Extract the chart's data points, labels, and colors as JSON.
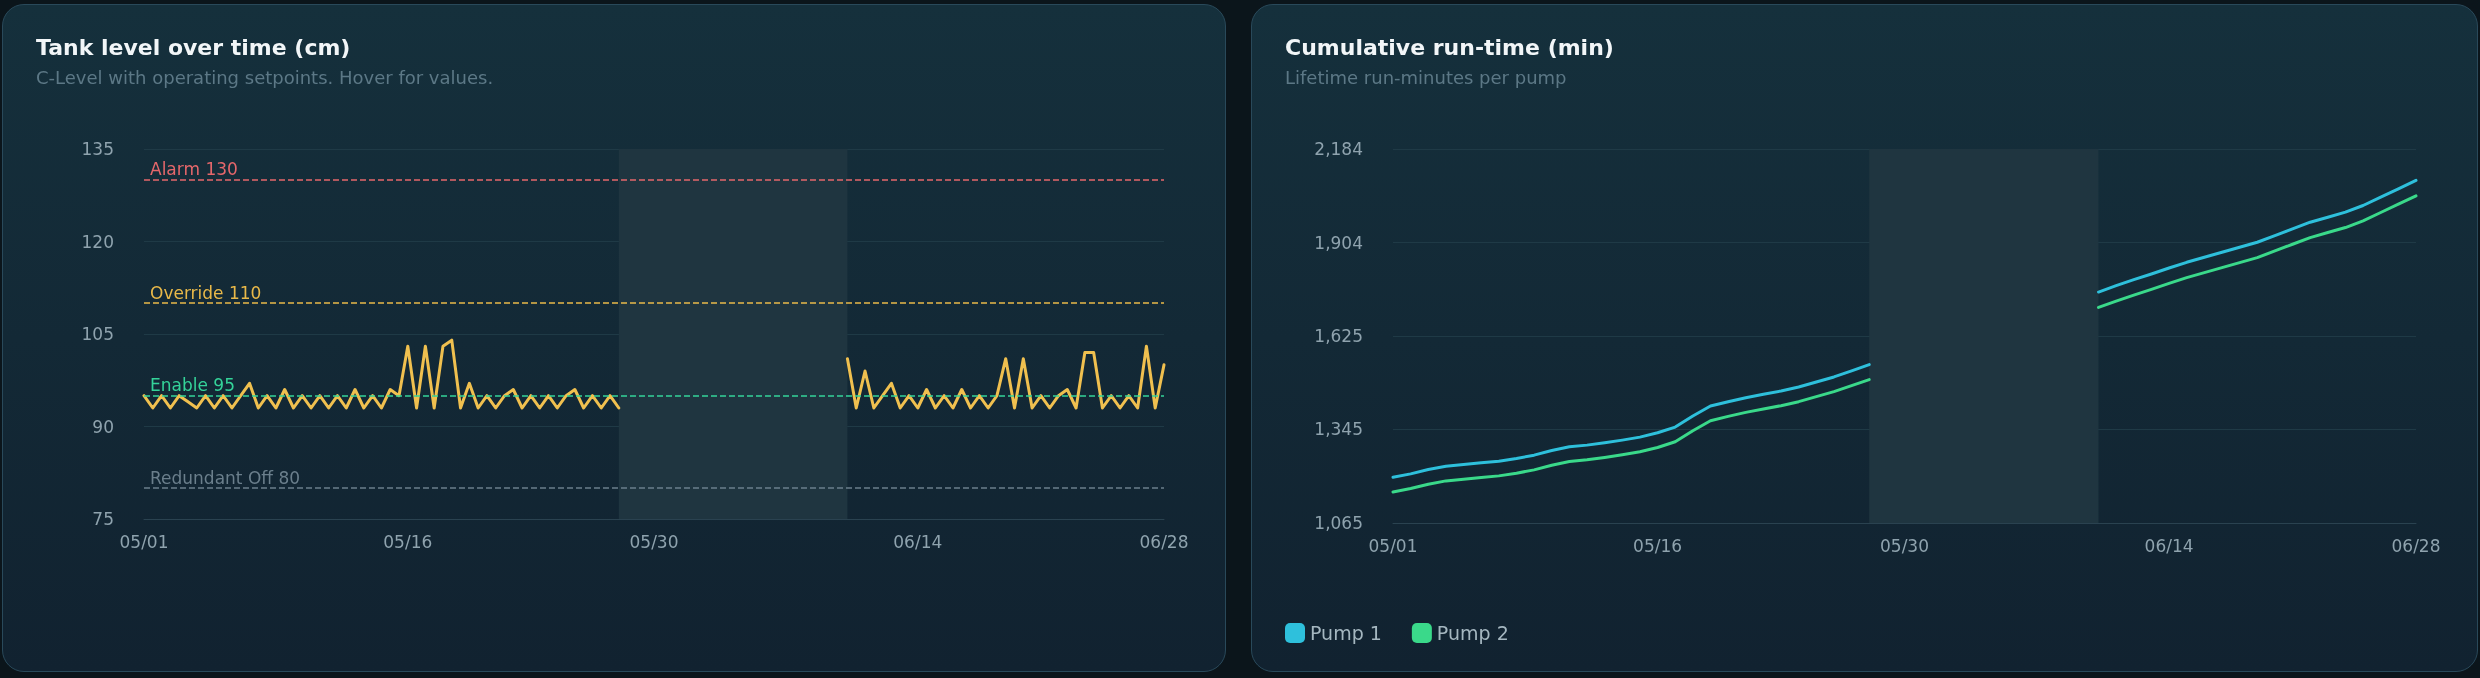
{
  "chart_data": [
    {
      "type": "line",
      "title": "Tank level over time (cm)",
      "subtitle": "C-Level with operating setpoints. Hover for values.",
      "x": [
        "--05-01",
        "--05-01T12:00",
        "--05-02",
        "--05-02T12:00",
        "--05-03",
        "--05-03T12:00",
        "--05-04",
        "--05-04T12:00",
        "--05-05",
        "--05-05T12:00",
        "--05-06",
        "--05-06T12:00",
        "--05-07",
        "--05-07T12:00",
        "--05-08",
        "--05-08T12:00",
        "--05-09",
        "--05-09T12:00",
        "--05-10",
        "--05-10T12:00",
        "--05-11",
        "--05-11T12:00",
        "--05-12",
        "--05-12T12:00",
        "--05-13",
        "--05-13T12:00",
        "--05-14",
        "--05-14T12:00",
        "--05-15",
        "--05-15T12:00",
        "--05-16",
        "--05-16T12:00",
        "--05-17",
        "--05-17T12:00",
        "--05-18",
        "--05-18T12:00",
        "--05-19",
        "--05-19T12:00",
        "--05-20",
        "--05-20T12:00",
        "--05-21",
        "--05-21T12:00",
        "--05-22",
        "--05-22T12:00",
        "--05-23",
        "--05-23T12:00",
        "--05-24",
        "--05-24T12:00",
        "--05-25",
        "--05-25T12:00",
        "--05-26",
        "--05-26T12:00",
        "--05-27",
        "--05-27T12:00",
        "--05-28",
        "--06-01",
        "--06-10",
        "--06-10T12:00",
        "--06-11",
        "--06-11T12:00",
        "--06-12",
        "--06-12T12:00",
        "--06-13",
        "--06-13T12:00",
        "--06-14",
        "--06-14T12:00",
        "--06-15",
        "--06-15T12:00",
        "--06-16",
        "--06-16T12:00",
        "--06-17",
        "--06-17T12:00",
        "--06-18",
        "--06-18T12:00",
        "--06-19",
        "--06-19T12:00",
        "--06-20",
        "--06-20T12:00",
        "--06-21",
        "--06-21T12:00",
        "--06-22",
        "--06-22T12:00",
        "--06-23",
        "--06-23T12:00",
        "--06-24",
        "--06-24T12:00",
        "--06-25",
        "--06-25T12:00",
        "--06-26",
        "--06-26T12:00",
        "--06-27",
        "--06-27T12:00",
        "--06-28"
      ],
      "values": [
        95,
        93,
        95,
        93,
        95,
        94,
        93,
        95,
        93,
        95,
        93,
        95,
        97,
        93,
        95,
        93,
        96,
        93,
        95,
        93,
        95,
        93,
        95,
        93,
        96,
        93,
        95,
        93,
        96,
        95,
        103,
        93,
        103,
        93,
        103,
        104,
        93,
        97,
        93,
        95,
        93,
        95,
        96,
        93,
        95,
        93,
        95,
        93,
        95,
        96,
        93,
        95,
        93,
        95,
        93,
        null,
        101,
        93,
        99,
        93,
        95,
        97,
        93,
        95,
        93,
        96,
        93,
        95,
        93,
        96,
        93,
        95,
        93,
        95,
        101,
        93,
        101,
        93,
        95,
        93,
        95,
        96,
        93,
        102,
        102,
        93,
        95,
        93,
        95,
        93,
        103,
        93,
        100
      ],
      "color": "#f0c04f",
      "marker": "none",
      "line_style": "solid",
      "xlim": [
        "--05-01",
        "--06-28"
      ],
      "xticks": [
        {
          "value": "--05-01",
          "label": "05/01"
        },
        {
          "value": "--05-16",
          "label": "05/16"
        },
        {
          "value": "--05-30",
          "label": "05/30"
        },
        {
          "value": "--06-14",
          "label": "06/14"
        },
        {
          "value": "--06-28",
          "label": "06/28"
        }
      ],
      "ylim": [
        75,
        135
      ],
      "yticks": [
        75,
        90,
        105,
        120,
        135
      ],
      "grid": "y",
      "legend": false,
      "ref_lines": [
        {
          "axis": "y",
          "value": 130,
          "label": "Alarm 130",
          "color": "#e5676b",
          "line_style": "dashed"
        },
        {
          "axis": "y",
          "value": 110,
          "label": "Override 110",
          "color": "#e9b949",
          "line_style": "dashed"
        },
        {
          "axis": "y",
          "value": 95,
          "label": "Enable 95",
          "color": "#34d399",
          "line_style": "dashed"
        },
        {
          "axis": "y",
          "value": 80,
          "label": "Redundant Off 80",
          "color": "#6b7f8c",
          "line_style": "dashed"
        }
      ],
      "bands": [
        {
          "axis": "x",
          "from": "--05-28",
          "to": "--06-10",
          "color": "#1f3540"
        }
      ]
    },
    {
      "type": "line",
      "title": "Cumulative run-time (min)",
      "subtitle": "Lifetime run-minutes per pump",
      "marker": "none",
      "line_style": "solid",
      "series": [
        {
          "name": "Pump 1",
          "color": "#2ec0dc",
          "x": [
            "--05-01",
            "--05-02",
            "--05-03",
            "--05-04",
            "--05-05",
            "--05-06",
            "--05-07",
            "--05-08",
            "--05-09",
            "--05-10",
            "--05-11",
            "--05-12",
            "--05-13",
            "--05-14",
            "--05-15",
            "--05-16",
            "--05-17",
            "--05-18",
            "--05-19",
            "--05-20",
            "--05-21",
            "--05-22",
            "--05-23",
            "--05-24",
            "--05-25",
            "--05-26",
            "--05-27",
            "--05-28",
            "--06-01",
            "--06-10",
            "--06-11",
            "--06-12",
            "--06-13",
            "--06-14",
            "--06-15",
            "--06-16",
            "--06-17",
            "--06-18",
            "--06-19",
            "--06-20",
            "--06-21",
            "--06-22",
            "--06-23",
            "--06-24",
            "--06-25",
            "--06-26",
            "--06-27",
            "--06-28"
          ],
          "values": [
            1202,
            1212,
            1225,
            1235,
            1240,
            1245,
            1250,
            1258,
            1268,
            1282,
            1293,
            1298,
            1305,
            1313,
            1322,
            1335,
            1352,
            1385,
            1415,
            1428,
            1440,
            1450,
            1460,
            1472,
            1487,
            1502,
            1520,
            1539,
            null,
            1756,
            1775,
            1793,
            1810,
            1828,
            1845,
            1860,
            1875,
            1890,
            1905,
            1925,
            1945,
            1965,
            1980,
            1995,
            2015,
            2040,
            2065,
            2090
          ]
        },
        {
          "name": "Pump 2",
          "color": "#3ad98a",
          "x": [
            "--05-01",
            "--05-02",
            "--05-03",
            "--05-04",
            "--05-05",
            "--05-06",
            "--05-07",
            "--05-08",
            "--05-09",
            "--05-10",
            "--05-11",
            "--05-12",
            "--05-13",
            "--05-14",
            "--05-15",
            "--05-16",
            "--05-17",
            "--05-18",
            "--05-19",
            "--05-20",
            "--05-21",
            "--05-22",
            "--05-23",
            "--05-24",
            "--05-25",
            "--05-26",
            "--05-27",
            "--05-28",
            "--06-01",
            "--06-10",
            "--06-11",
            "--06-12",
            "--06-13",
            "--06-14",
            "--06-15",
            "--06-16",
            "--06-17",
            "--06-18",
            "--06-19",
            "--06-20",
            "--06-21",
            "--06-22",
            "--06-23",
            "--06-24",
            "--06-25",
            "--06-26",
            "--06-27",
            "--06-28"
          ],
          "values": [
            1158,
            1168,
            1181,
            1191,
            1196,
            1201,
            1206,
            1214,
            1224,
            1238,
            1249,
            1254,
            1261,
            1269,
            1278,
            1291,
            1308,
            1341,
            1371,
            1384,
            1396,
            1406,
            1416,
            1428,
            1443,
            1458,
            1476,
            1494,
            null,
            1710,
            1729,
            1747,
            1764,
            1782,
            1799,
            1814,
            1829,
            1844,
            1859,
            1879,
            1899,
            1919,
            1934,
            1949,
            1969,
            1994,
            2019,
            2044
          ]
        }
      ],
      "xlim": [
        "--05-01",
        "--06-28"
      ],
      "xticks": [
        {
          "value": "--05-01",
          "label": "05/01"
        },
        {
          "value": "--05-16",
          "label": "05/16"
        },
        {
          "value": "--05-30",
          "label": "05/30"
        },
        {
          "value": "--06-14",
          "label": "06/14"
        },
        {
          "value": "--06-28",
          "label": "06/28"
        }
      ],
      "ylim": [
        1065,
        2184
      ],
      "yticks": [
        {
          "value": 1065,
          "label": "1,065"
        },
        {
          "value": 1345,
          "label": "1,345"
        },
        {
          "value": 1625,
          "label": "1,625"
        },
        {
          "value": 1904,
          "label": "1,904"
        },
        {
          "value": 2184,
          "label": "2,184"
        }
      ],
      "grid": "y",
      "legend": "bottom left",
      "bands": [
        {
          "axis": "x",
          "from": "--05-28",
          "to": "--06-10",
          "color": "#1f3540"
        }
      ]
    }
  ]
}
